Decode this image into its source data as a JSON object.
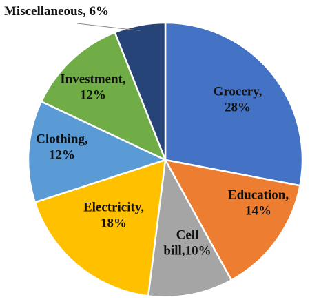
{
  "chart_data": {
    "type": "pie",
    "title": "",
    "slices": [
      {
        "category": "Grocery",
        "value": 28,
        "color": "#4472C4",
        "label_lines": [
          "Grocery,",
          "28%"
        ]
      },
      {
        "category": "Education",
        "value": 14,
        "color": "#ED7D31",
        "label_lines": [
          "Education,",
          "14%"
        ]
      },
      {
        "category": "Cell bill",
        "value": 10,
        "color": "#A5A5A5",
        "label_lines": [
          "Cell",
          "bill,10%"
        ]
      },
      {
        "category": "Electricity",
        "value": 18,
        "color": "#FFC000",
        "label_lines": [
          "Electricity,",
          "18%"
        ]
      },
      {
        "category": "Clothing",
        "value": 12,
        "color": "#5B9BD5",
        "label_lines": [
          "Clothing,",
          "12%"
        ]
      },
      {
        "category": "Investment",
        "value": 12,
        "color": "#70AD47",
        "label_lines": [
          "Investment,",
          "12%"
        ]
      },
      {
        "category": "Miscellaneous",
        "value": 6,
        "color": "#264478",
        "label_lines": [
          "Miscellaneous, 6%"
        ]
      }
    ],
    "legend": "none",
    "data_labels": "category and percent"
  }
}
